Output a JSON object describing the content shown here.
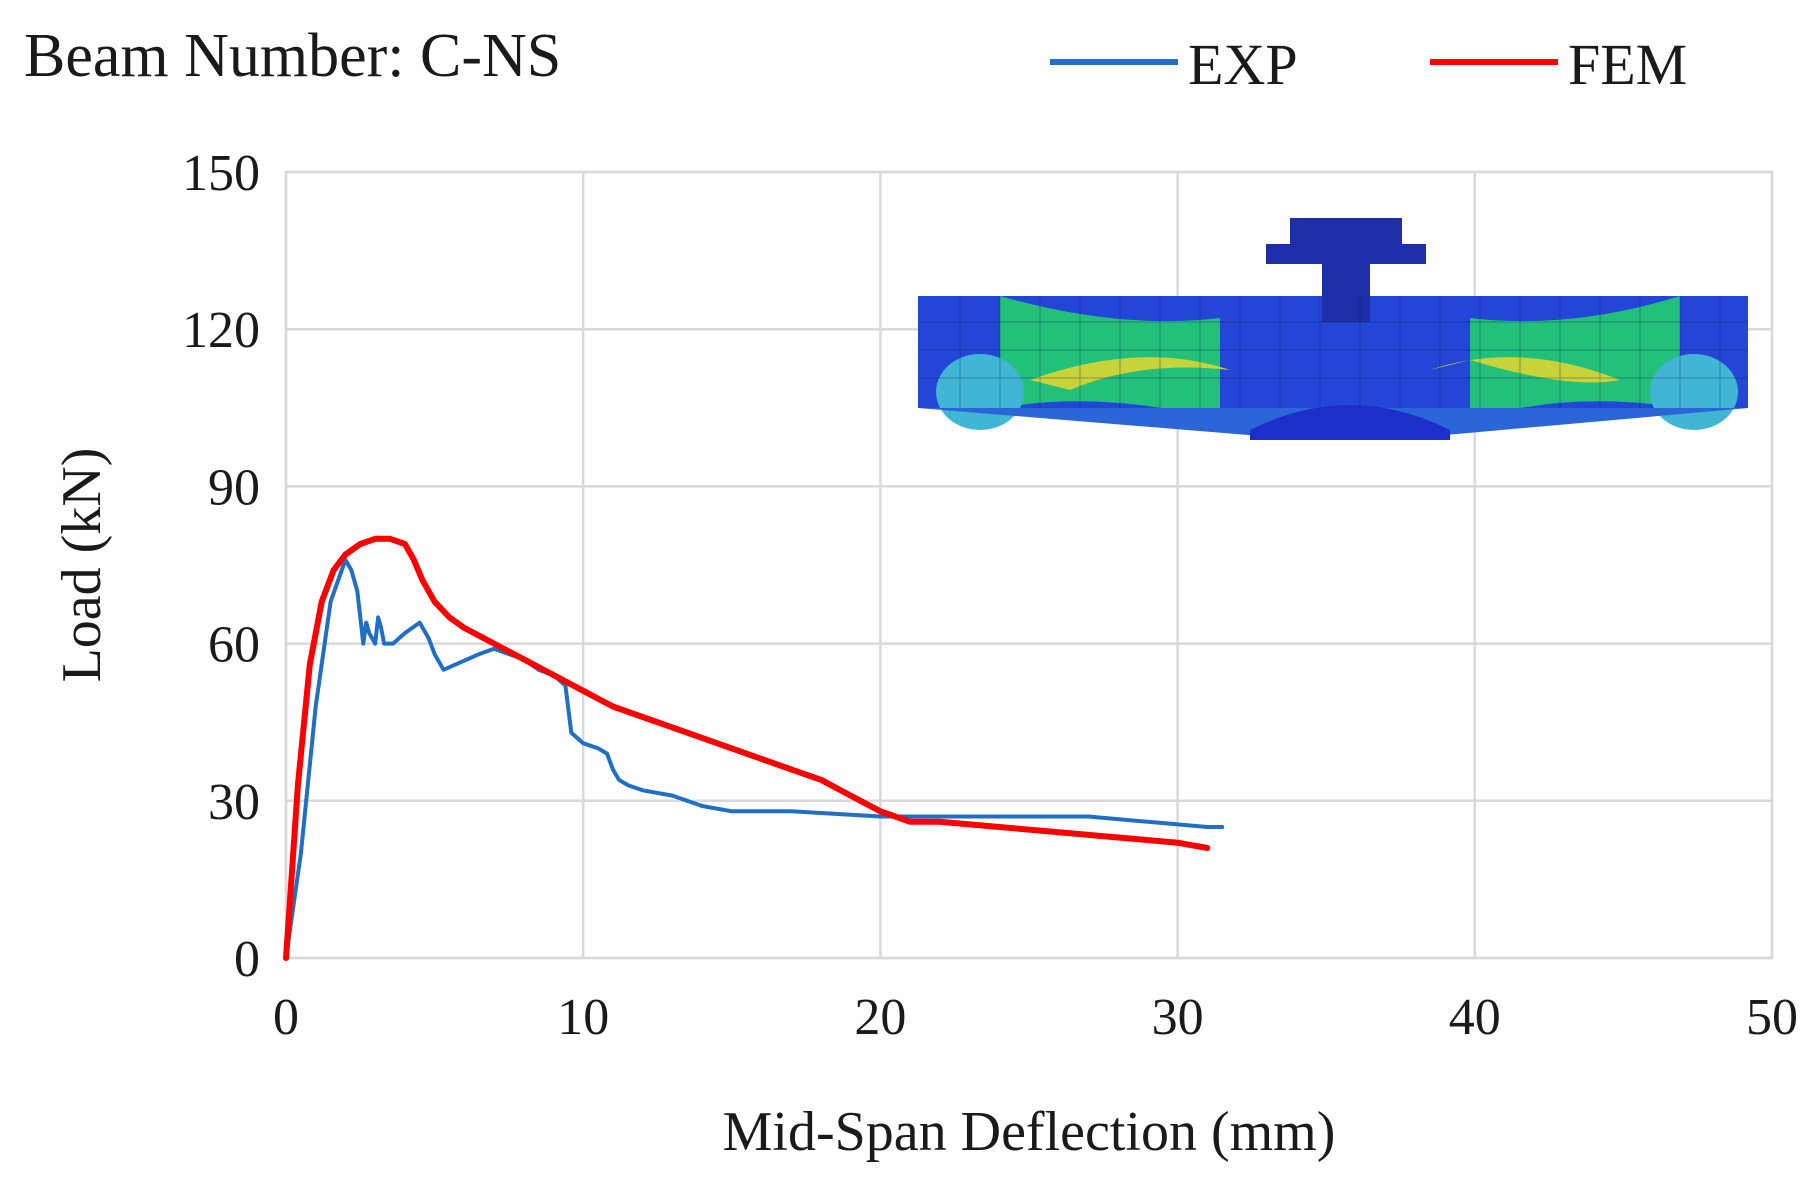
{
  "chart_data": {
    "type": "line",
    "title": "Beam Number: C-NS",
    "xlabel": "Mid-Span Deflection (mm)",
    "ylabel": "Load (kN)",
    "xlim": [
      0,
      50
    ],
    "ylim": [
      0,
      150
    ],
    "xticks": [
      0,
      10,
      20,
      30,
      40,
      50
    ],
    "yticks": [
      0,
      30,
      60,
      90,
      120,
      150
    ],
    "grid": true,
    "legend_position": "top-right",
    "series": [
      {
        "name": "EXP",
        "color": "#1f6fc5",
        "x": [
          0.0,
          0.5,
          1.0,
          1.5,
          2.0,
          2.2,
          2.4,
          2.6,
          2.7,
          2.8,
          2.9,
          3.0,
          3.1,
          3.2,
          3.3,
          3.6,
          4.0,
          4.5,
          4.8,
          5.0,
          5.3,
          5.7,
          6.5,
          7.0,
          7.5,
          8.0,
          8.5,
          9.0,
          9.4,
          9.6,
          10.0,
          10.5,
          10.8,
          11.0,
          11.2,
          11.5,
          12.0,
          13.0,
          14.0,
          15.0,
          17.0,
          20.0,
          22.0,
          25.0,
          27.0,
          29.0,
          31.0,
          31.5
        ],
        "y": [
          0,
          20,
          48,
          68,
          76,
          74,
          70,
          60,
          64,
          62,
          61,
          60,
          65,
          63,
          60,
          60,
          62,
          64,
          61,
          58,
          55,
          56,
          58,
          59,
          58,
          57,
          55,
          54,
          52,
          43,
          41,
          40,
          39,
          36,
          34,
          33,
          32,
          31,
          29,
          28,
          28,
          27,
          27,
          27,
          27,
          26,
          25,
          25
        ]
      },
      {
        "name": "FEM",
        "color": "#ff0000",
        "x": [
          0.0,
          0.4,
          0.8,
          1.2,
          1.6,
          2.0,
          2.5,
          3.0,
          3.5,
          4.0,
          4.3,
          4.6,
          5.0,
          5.5,
          6.0,
          7.0,
          8.0,
          9.0,
          10.0,
          11.0,
          12.0,
          13.0,
          14.0,
          15.0,
          16.0,
          17.0,
          18.0,
          19.0,
          20.0,
          21.0,
          22.0,
          24.0,
          26.0,
          28.0,
          30.0,
          31.0
        ],
        "y": [
          0,
          33,
          56,
          68,
          74,
          77,
          79,
          80,
          80,
          79,
          76,
          72,
          68,
          65,
          63,
          60,
          57,
          54,
          51,
          48,
          46,
          44,
          42,
          40,
          38,
          36,
          34,
          31,
          28,
          26,
          26,
          25,
          24,
          23,
          22,
          21
        ]
      }
    ],
    "inset": {
      "description_icon": "fem-stress-contour-icon"
    }
  }
}
